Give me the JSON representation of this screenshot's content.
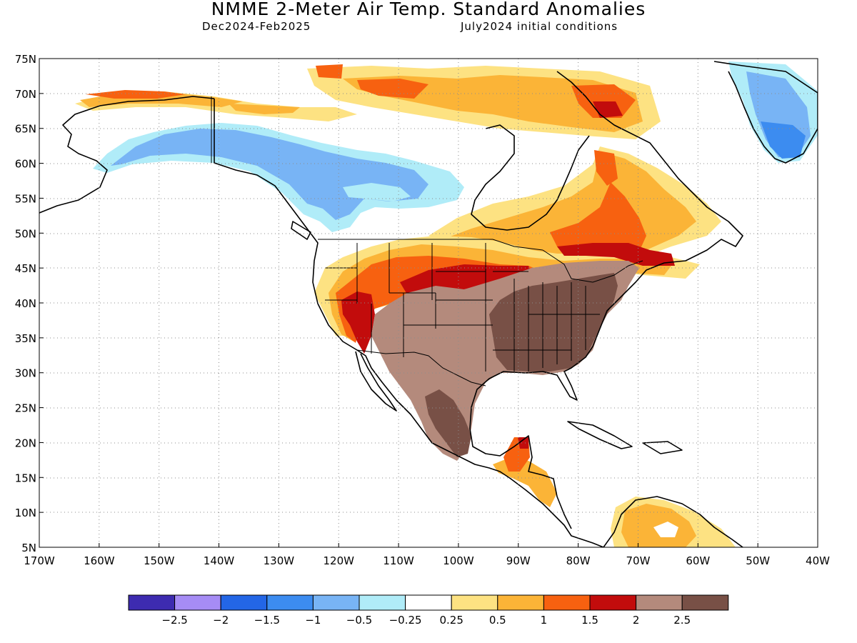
{
  "title": "NMME 2-Meter Air Temp. Standard Anomalies",
  "subtitle_left": "Dec2024-Feb2025",
  "subtitle_right": "July2024 initial conditions",
  "axes": {
    "lat_labels": [
      "75N",
      "70N",
      "65N",
      "60N",
      "55N",
      "50N",
      "45N",
      "40N",
      "35N",
      "30N",
      "25N",
      "20N",
      "15N",
      "10N",
      "5N"
    ],
    "lat_values": [
      75,
      70,
      65,
      60,
      55,
      50,
      45,
      40,
      35,
      30,
      25,
      20,
      15,
      10,
      5
    ],
    "lon_labels": [
      "170W",
      "160W",
      "150W",
      "140W",
      "130W",
      "120W",
      "110W",
      "100W",
      "90W",
      "80W",
      "70W",
      "60W",
      "50W",
      "40W"
    ],
    "lon_values": [
      -170,
      -160,
      -150,
      -140,
      -130,
      -120,
      -110,
      -100,
      -90,
      -80,
      -70,
      -60,
      -50,
      -40
    ]
  },
  "legend": {
    "colors": [
      "#3d2bb0",
      "#a68cf5",
      "#2366e6",
      "#3c8cf0",
      "#78b4f5",
      "#b0ecf8",
      "#ffffff",
      "#fde282",
      "#fbb437",
      "#f76110",
      "#c20c0c",
      "#b48a7c",
      "#785046"
    ],
    "labels": [
      "-2.5",
      "-2",
      "-1.5",
      "-1",
      "-0.5",
      "-0.25",
      "0.25",
      "0.5",
      "1",
      "1.5",
      "2",
      "2.5"
    ]
  },
  "chart_data": {
    "type": "heatmap",
    "title": "NMME 2-Meter Air Temp. Standard Anomalies",
    "subtitle": "Dec2024-Feb2025",
    "note": "July2024 initial conditions",
    "xlim": [
      -170,
      -40
    ],
    "ylim": [
      5,
      75
    ],
    "grid": true,
    "color_scale_breaks": [
      -2.5,
      -2,
      -1.5,
      -1,
      -0.5,
      -0.25,
      0.25,
      0.5,
      1,
      1.5,
      2,
      2.5
    ],
    "regions": [
      {
        "region": "Alaska / western Canada",
        "category": "-1 to -0.5"
      },
      {
        "region": "Greenland interior",
        "category": "-1.5 to -1"
      },
      {
        "region": "Northern Alaska coast",
        "category": "1 to 1.5"
      },
      {
        "region": "Southeastern United States",
        "category": "> 2.5"
      },
      {
        "region": "Southwestern United States / Mexico",
        "category": "2 to 2.5"
      },
      {
        "region": "Great Basin / Nevada",
        "category": "1.5 to 2"
      },
      {
        "region": "Northern Plains / Great Lakes",
        "category": "1.5 to 2"
      },
      {
        "region": "Quebec / Labrador",
        "category": "0.5 to 1.5"
      },
      {
        "region": "Northern Canadian Arctic islands",
        "category": "0.5 to 1.5"
      },
      {
        "region": "Central America",
        "category": "0.5 to 1.5"
      },
      {
        "region": "Northern South America",
        "category": "0.25 to 1"
      }
    ]
  }
}
